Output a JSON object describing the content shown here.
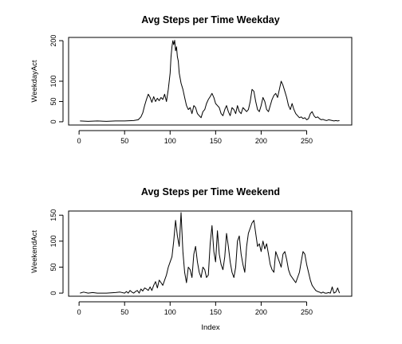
{
  "chart_data": [
    {
      "type": "line",
      "title": "Avg Steps per Time Weekday",
      "xlabel": "",
      "ylabel": "WeekdayAct",
      "xlim": [
        -11.5,
        299.5
      ],
      "ylim": [
        -8,
        208
      ],
      "xticks": [
        0,
        50,
        100,
        150,
        200,
        250
      ],
      "yticks": [
        0,
        50,
        100,
        200
      ],
      "grid": false,
      "series": [
        {
          "x": [
            1,
            10,
            20,
            30,
            40,
            50,
            60,
            65,
            68,
            70,
            72,
            74,
            76,
            78,
            80,
            82,
            84,
            86,
            88,
            90,
            92,
            94,
            96,
            98,
            100,
            101,
            102,
            103,
            104,
            105,
            106,
            107,
            108,
            109,
            110,
            112,
            114,
            116,
            118,
            120,
            122,
            124,
            126,
            128,
            130,
            132,
            134,
            136,
            138,
            140,
            142,
            144,
            146,
            148,
            150,
            152,
            154,
            156,
            158,
            160,
            162,
            164,
            166,
            168,
            170,
            172,
            174,
            176,
            178,
            180,
            182,
            184,
            186,
            188,
            190,
            192,
            194,
            196,
            198,
            200,
            202,
            204,
            206,
            208,
            210,
            212,
            214,
            216,
            218,
            220,
            222,
            224,
            226,
            228,
            230,
            232,
            234,
            236,
            238,
            240,
            242,
            244,
            246,
            248,
            250,
            252,
            254,
            256,
            258,
            260,
            262,
            264,
            266,
            268,
            270,
            272,
            274,
            276,
            278,
            280,
            282,
            284,
            286
          ],
          "values": [
            2,
            1,
            2,
            1,
            2,
            2,
            3,
            5,
            12,
            22,
            40,
            55,
            68,
            60,
            48,
            62,
            50,
            58,
            52,
            60,
            55,
            68,
            50,
            80,
            120,
            160,
            185,
            200,
            190,
            201,
            175,
            185,
            160,
            150,
            120,
            95,
            80,
            60,
            40,
            30,
            35,
            20,
            40,
            35,
            20,
            15,
            10,
            25,
            30,
            45,
            55,
            62,
            70,
            60,
            45,
            40,
            35,
            20,
            15,
            30,
            40,
            25,
            15,
            35,
            30,
            20,
            40,
            25,
            20,
            35,
            30,
            25,
            30,
            50,
            80,
            75,
            50,
            30,
            25,
            40,
            60,
            50,
            30,
            25,
            40,
            55,
            65,
            70,
            60,
            80,
            100,
            90,
            75,
            60,
            40,
            30,
            45,
            30,
            20,
            15,
            10,
            12,
            8,
            10,
            5,
            8,
            20,
            25,
            15,
            10,
            12,
            8,
            5,
            6,
            4,
            3,
            5,
            4,
            3,
            2,
            3,
            2,
            3
          ]
        }
      ]
    },
    {
      "type": "line",
      "title": "Avg Steps per Time Weekend",
      "xlabel": "Index",
      "ylabel": "WeekendAct",
      "xlim": [
        -11.5,
        299.5
      ],
      "ylim": [
        -6,
        158
      ],
      "xticks": [
        0,
        50,
        100,
        150,
        200,
        250
      ],
      "yticks": [
        0,
        50,
        100,
        150
      ],
      "grid": false,
      "series": [
        {
          "x": [
            1,
            5,
            10,
            15,
            20,
            30,
            40,
            45,
            50,
            52,
            54,
            56,
            58,
            60,
            62,
            64,
            66,
            68,
            70,
            72,
            74,
            76,
            78,
            80,
            82,
            84,
            86,
            88,
            90,
            92,
            94,
            96,
            98,
            100,
            102,
            104,
            106,
            108,
            110,
            112,
            114,
            116,
            118,
            120,
            122,
            124,
            126,
            128,
            130,
            132,
            134,
            136,
            138,
            140,
            142,
            144,
            146,
            148,
            150,
            152,
            154,
            156,
            158,
            160,
            162,
            164,
            166,
            168,
            170,
            172,
            174,
            176,
            178,
            180,
            182,
            184,
            186,
            188,
            190,
            192,
            194,
            196,
            198,
            200,
            202,
            204,
            206,
            208,
            210,
            212,
            214,
            216,
            218,
            220,
            222,
            224,
            226,
            228,
            230,
            232,
            234,
            236,
            238,
            240,
            242,
            244,
            246,
            248,
            250,
            252,
            254,
            256,
            258,
            260,
            262,
            264,
            266,
            268,
            270,
            272,
            274,
            276,
            278,
            280,
            282,
            284,
            286
          ],
          "values": [
            0,
            2,
            0,
            1,
            0,
            0,
            1,
            2,
            0,
            3,
            0,
            5,
            2,
            0,
            3,
            5,
            0,
            8,
            4,
            10,
            8,
            5,
            12,
            5,
            15,
            22,
            10,
            25,
            20,
            15,
            25,
            35,
            50,
            60,
            70,
            100,
            140,
            110,
            90,
            155,
            80,
            40,
            20,
            50,
            45,
            30,
            75,
            90,
            60,
            40,
            30,
            50,
            45,
            30,
            35,
            95,
            130,
            80,
            60,
            120,
            75,
            55,
            45,
            70,
            115,
            90,
            60,
            40,
            30,
            50,
            100,
            110,
            75,
            55,
            40,
            90,
            115,
            125,
            135,
            140,
            115,
            90,
            95,
            80,
            100,
            85,
            95,
            75,
            55,
            45,
            40,
            80,
            70,
            60,
            50,
            75,
            80,
            65,
            45,
            35,
            30,
            25,
            20,
            30,
            40,
            60,
            80,
            75,
            55,
            40,
            25,
            15,
            10,
            5,
            3,
            2,
            0,
            2,
            0,
            0,
            1,
            0,
            12,
            0,
            2,
            10,
            0
          ]
        }
      ]
    }
  ]
}
